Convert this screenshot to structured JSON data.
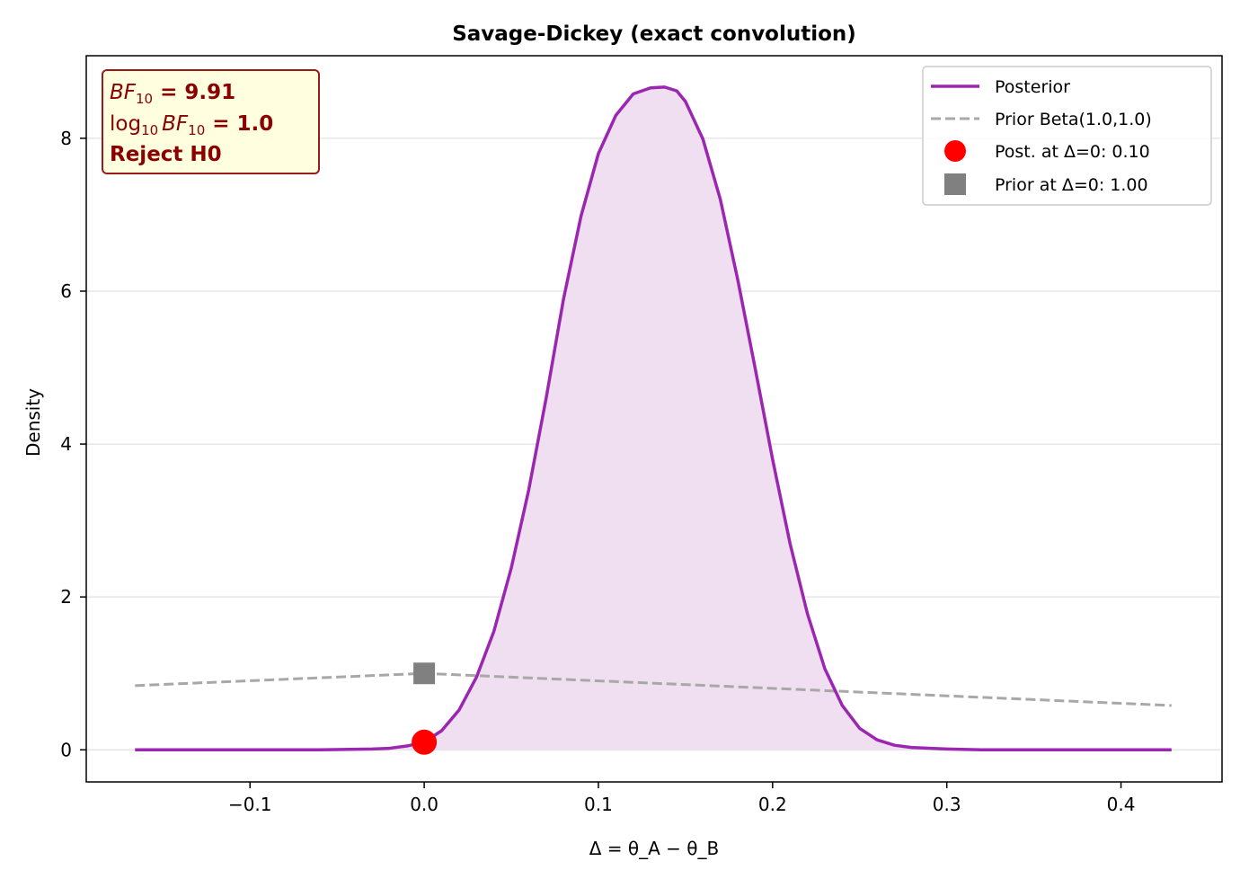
{
  "chart_data": {
    "type": "line",
    "title": "Savage-Dickey (exact convolution)",
    "xlabel": "Δ = θ_A − θ_B",
    "ylabel": "Density",
    "xlim": [
      -0.194,
      0.458
    ],
    "ylim": [
      -0.42,
      9.08
    ],
    "xticks": [
      -0.1,
      0.0,
      0.1,
      0.2,
      0.3,
      0.4
    ],
    "xtick_labels": [
      "−0.1",
      "0.0",
      "0.1",
      "0.2",
      "0.3",
      "0.4"
    ],
    "yticks": [
      0,
      2,
      4,
      6,
      8
    ],
    "ytick_labels": [
      "0",
      "2",
      "4",
      "6",
      "8"
    ],
    "grid": "horizontal",
    "legend_position": "top-right",
    "series": [
      {
        "name": "Posterior",
        "style": "solid",
        "color": "#9b27b0",
        "fill": "#efdff1",
        "x": [
          -0.166,
          -0.06,
          -0.03,
          -0.02,
          -0.01,
          0.0,
          0.01,
          0.02,
          0.03,
          0.04,
          0.05,
          0.06,
          0.07,
          0.08,
          0.09,
          0.1,
          0.11,
          0.12,
          0.13,
          0.138,
          0.145,
          0.15,
          0.16,
          0.17,
          0.18,
          0.19,
          0.2,
          0.21,
          0.22,
          0.23,
          0.24,
          0.25,
          0.26,
          0.27,
          0.28,
          0.3,
          0.32,
          0.35,
          0.429
        ],
        "y": [
          0.0,
          0.0,
          0.01,
          0.02,
          0.05,
          0.1,
          0.25,
          0.52,
          0.95,
          1.55,
          2.38,
          3.4,
          4.6,
          5.9,
          6.98,
          7.8,
          8.3,
          8.58,
          8.66,
          8.67,
          8.62,
          8.48,
          7.99,
          7.2,
          6.15,
          4.99,
          3.8,
          2.7,
          1.78,
          1.06,
          0.58,
          0.28,
          0.13,
          0.06,
          0.03,
          0.01,
          0.0,
          0.0,
          0.0
        ]
      },
      {
        "name": "Prior Beta(1.0,1.0)",
        "style": "dashed",
        "color": "#a8a8a8",
        "x": [
          -0.166,
          0.0,
          0.429
        ],
        "y": [
          0.84,
          1.0,
          0.58
        ]
      }
    ],
    "points": [
      {
        "name": "Post. at Δ=0: 0.10",
        "x": 0.0,
        "y": 0.1,
        "marker": "circle",
        "color": "#ff0000"
      },
      {
        "name": "Prior at Δ=0: 1.00",
        "x": 0.0,
        "y": 1.0,
        "marker": "square",
        "color": "#808080"
      }
    ],
    "annotation": {
      "bf_label": "BF",
      "bf_sub": "10",
      "bf_value": " = 9.91",
      "log_label": "log",
      "log_sub": "10",
      "log_bf_label": "BF",
      "log_bf_sub": "10",
      "log_value": " = 1.0",
      "decision": "Reject H0",
      "text_color": "#8b0000",
      "background": "#ffffe0",
      "border_color": "#9b1b1b"
    }
  }
}
